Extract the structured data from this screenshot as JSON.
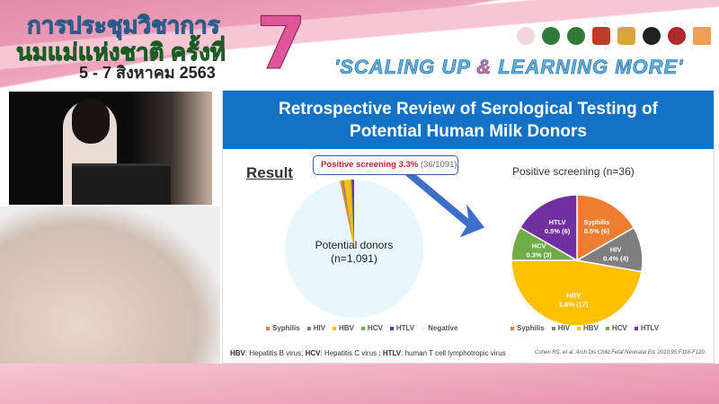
{
  "banner": {
    "line1": "การประชุมวิชาการ",
    "line2": "นมแม่แห่งชาติ ครั้งที่",
    "date": "5 - 7 สิงหาคม 2563",
    "number": "7",
    "slogan_a": "'SCALING UP ",
    "slogan_amp": "&",
    "slogan_b": " LEARNING MORE'"
  },
  "slide": {
    "title_line1": "Retrospective Review of Serological Testing of",
    "title_line2": "Potential Human Milk Donors",
    "result_label": "Result",
    "callout_bold": "Positive screening 3.3%",
    "callout_rest": " (36/1091)",
    "footnote_parts": [
      "HBV",
      ": Hepatitis B virus; ",
      "HCV",
      ": Hepatitis C virus ; ",
      "HTLV",
      ": human T cell lymphotropic virus"
    ],
    "citation": "Cohen RS, et al. Arch Dis Child Fetal Neonatal Ed. 2010;95:F118-F120."
  },
  "chart_data": [
    {
      "type": "pie",
      "center_label_1": "Potential donors",
      "center_label_2": "(n=1,091)",
      "categories": [
        "Syphilis",
        "HIV",
        "HBV",
        "HCV",
        "HTLV",
        "Negative"
      ],
      "values": [
        6,
        4,
        17,
        3,
        6,
        1055
      ],
      "colors": [
        "#ed7d31",
        "#7f7f7f",
        "#ffc000",
        "#70ad47",
        "#7030a0",
        "#e8f6fd"
      ],
      "legend": "bottom"
    },
    {
      "type": "pie",
      "title": "Positive screening (n=36)",
      "categories": [
        "Syphilis",
        "HIV",
        "HBV",
        "HCV",
        "HTLV"
      ],
      "values": [
        6,
        4,
        17,
        3,
        6
      ],
      "labels": [
        "0.5% (6)",
        "0.4% (4)",
        "1.6% (17)",
        "0.3% (3)",
        "0.5% (6)"
      ],
      "colors": [
        "#ed7d31",
        "#7f7f7f",
        "#ffc000",
        "#70ad47",
        "#7030a0"
      ],
      "legend": "bottom"
    }
  ]
}
